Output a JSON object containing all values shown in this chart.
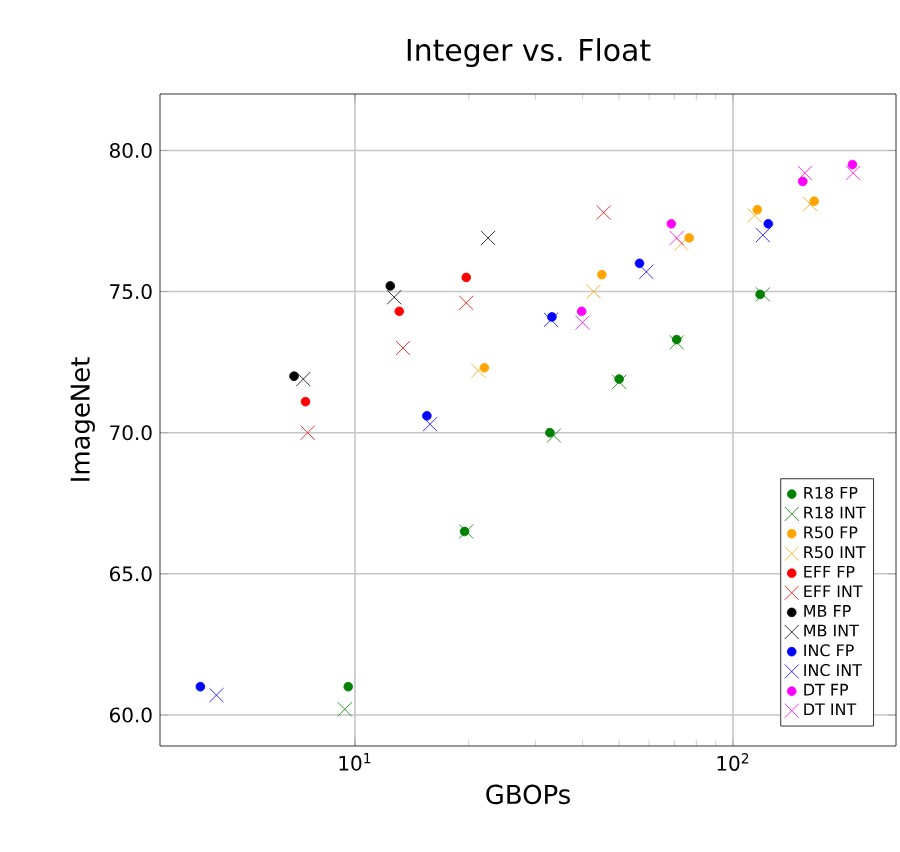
{
  "chart_data": {
    "type": "scatter",
    "title": "Integer vs. Float",
    "xlabel": "GBOPs",
    "ylabel": "ImageNet",
    "log": "x",
    "xlim": [
      3.05,
      270
    ],
    "ylim": [
      58.9,
      82.0
    ],
    "xticks": [
      {
        "value": 10,
        "label": "10$^{1}$"
      },
      {
        "value": 100,
        "label": "10$^{2}$"
      }
    ],
    "yticks": [
      {
        "value": 60,
        "label": "60.0"
      },
      {
        "value": 65,
        "label": "65.0"
      },
      {
        "value": 70,
        "label": "70.0"
      },
      {
        "value": 75,
        "label": "75.0"
      },
      {
        "value": 80,
        "label": "80.0"
      }
    ],
    "grid": true,
    "legend": "bottom right",
    "series": [
      {
        "name": "R18 FP",
        "color": "#008000",
        "marker": "circle",
        "x": [
          9.6,
          19.5,
          32.8,
          50,
          71,
          118
        ],
        "values": [
          61.0,
          66.5,
          70.0,
          71.9,
          73.3,
          74.9
        ]
      },
      {
        "name": "R18 INT",
        "color": "#008000",
        "marker": "cross",
        "x": [
          9.4,
          19.7,
          33.6,
          50,
          71,
          120
        ],
        "values": [
          60.2,
          66.5,
          69.9,
          71.8,
          73.2,
          74.9
        ]
      },
      {
        "name": "R50 FP",
        "color": "#ffa500",
        "marker": "circle",
        "x": [
          22,
          45,
          76.6,
          116,
          164
        ],
        "values": [
          72.3,
          75.6,
          76.9,
          77.9,
          78.2
        ]
      },
      {
        "name": "R50 INT",
        "color": "#ffa500",
        "marker": "cross",
        "x": [
          21.2,
          42.8,
          73,
          114,
          160
        ],
        "values": [
          72.2,
          75.0,
          76.7,
          77.7,
          78.1
        ]
      },
      {
        "name": "EFF FP",
        "color": "#ff0000",
        "marker": "circle",
        "x": [
          7.4,
          13.1,
          19.7
        ],
        "values": [
          71.1,
          74.3,
          75.5
        ]
      },
      {
        "name": "EFF INT",
        "color": "#ff0000",
        "marker": "cross",
        "x": [
          7.5,
          13.4,
          19.7,
          45.5
        ],
        "values": [
          70.0,
          73.0,
          74.6,
          77.8
        ]
      },
      {
        "name": "MB FP",
        "color": "#000000",
        "marker": "circle",
        "x": [
          6.9,
          12.4
        ],
        "values": [
          72.0,
          75.2
        ]
      },
      {
        "name": "MB INT",
        "color": "#000000",
        "marker": "cross",
        "x": [
          7.3,
          12.7,
          22.5
        ],
        "values": [
          71.9,
          74.8,
          76.9
        ]
      },
      {
        "name": "INC FP",
        "color": "#0000ff",
        "marker": "circle",
        "x": [
          3.9,
          15.5,
          33.2,
          56.6,
          124
        ],
        "values": [
          61.0,
          70.6,
          74.1,
          76.0,
          77.4
        ]
      },
      {
        "name": "INC INT",
        "color": "#0000ff",
        "marker": "cross",
        "x": [
          4.3,
          15.8,
          33,
          59,
          120
        ],
        "values": [
          60.7,
          70.3,
          74.0,
          75.7,
          77.0
        ]
      },
      {
        "name": "DT FP",
        "color": "#ff00ff",
        "marker": "circle",
        "x": [
          39.8,
          68.7,
          153,
          207
        ],
        "values": [
          74.3,
          77.4,
          78.9,
          79.5
        ]
      },
      {
        "name": "DT INT",
        "color": "#ff00ff",
        "marker": "cross",
        "x": [
          40,
          71,
          155,
          208
        ],
        "values": [
          73.9,
          76.9,
          79.2,
          79.2
        ]
      }
    ]
  }
}
